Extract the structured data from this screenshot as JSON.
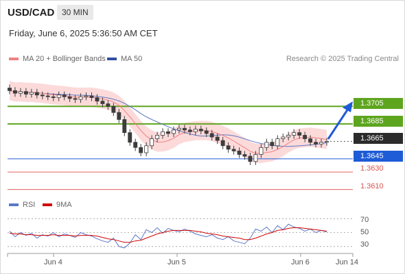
{
  "header": {
    "symbol": "USD/CAD",
    "timeframe": "30 MIN",
    "date_line": "Friday, June 6, 2025 5:36:50 AM CET"
  },
  "legend": {
    "ma20_label": "MA 20 + Bollinger Bands",
    "ma50_label": "MA 50",
    "copyright": "Research © 2025 Trading Central"
  },
  "colors": {
    "ma20": "#f08080",
    "bollinger_fill": "#fbd3d3",
    "ma50": "#5b78c7",
    "resistance": "#5ea51f",
    "support": "#1e5bd6",
    "secondary": "#e06060",
    "current": "#2b2b2b",
    "candle": "#3d3d3d",
    "rsi": "#5b78c7",
    "rsi_ma": "#d00000",
    "arrow": "#1e5bd6"
  },
  "levels": {
    "r2": "1.3705",
    "r1": "1.3685",
    "current": "1.3665",
    "s1": "1.3645",
    "s2": "1.3630",
    "s3": "1.3610"
  },
  "rsi": {
    "rsi_label": "RSI",
    "ma_label": "9MA",
    "ticks": [
      "70",
      "50",
      "30"
    ]
  },
  "xaxis": {
    "ticks": [
      "Jun 4",
      "Jun 5",
      "Jun 6",
      "Jun 14"
    ]
  },
  "chart_data": {
    "type": "candlestick",
    "title": "USD/CAD",
    "timeframe": "30 MIN",
    "x_ticks": [
      "Jun 4",
      "Jun 5",
      "Jun 6",
      "Jun 14"
    ],
    "price_range": [
      1.3605,
      1.3735
    ],
    "key_levels": [
      {
        "name": "resistance",
        "value": 1.3705
      },
      {
        "name": "resistance",
        "value": 1.3685
      },
      {
        "name": "current",
        "value": 1.3665
      },
      {
        "name": "support",
        "value": 1.3645
      },
      {
        "name": "support",
        "value": 1.363
      },
      {
        "name": "support",
        "value": 1.361
      }
    ],
    "close_path": [
      1.3723,
      1.372,
      1.3722,
      1.3719,
      1.3721,
      1.3718,
      1.3717,
      1.3716,
      1.3715,
      1.3718,
      1.3716,
      1.3714,
      1.3713,
      1.3716,
      1.3717,
      1.3715,
      1.3711,
      1.3708,
      1.3705,
      1.3698,
      1.369,
      1.3675,
      1.3664,
      1.3658,
      1.3652,
      1.366,
      1.3668,
      1.3672,
      1.3676,
      1.3674,
      1.3678,
      1.368,
      1.3678,
      1.3676,
      1.3679,
      1.3677,
      1.3674,
      1.367,
      1.3666,
      1.366,
      1.3656,
      1.3654,
      1.365,
      1.3648,
      1.3642,
      1.365,
      1.3658,
      1.3664,
      1.366,
      1.3668,
      1.367,
      1.3672,
      1.3675,
      1.3672,
      1.3668,
      1.3664,
      1.3662,
      1.3664,
      1.3665
    ],
    "rsi_range": [
      20,
      80
    ],
    "rsi_ticks": [
      70,
      50,
      30
    ],
    "rsi_path": [
      52,
      44,
      50,
      46,
      49,
      42,
      47,
      45,
      50,
      44,
      48,
      46,
      43,
      50,
      47,
      45,
      41,
      38,
      36,
      42,
      30,
      28,
      35,
      47,
      40,
      54,
      50,
      57,
      49,
      56,
      53,
      51,
      55,
      52,
      48,
      46,
      44,
      47,
      42,
      40,
      44,
      38,
      36,
      34,
      42,
      55,
      52,
      58,
      50,
      60,
      54,
      62,
      58,
      56,
      52,
      55,
      50,
      53,
      51
    ],
    "rsi_ma_path": [
      49,
      48,
      48,
      47,
      47,
      46,
      46,
      46,
      47,
      46,
      46,
      46,
      45,
      46,
      46,
      46,
      45,
      43,
      41,
      40,
      38,
      36,
      36,
      38,
      39,
      42,
      45,
      48,
      50,
      52,
      53,
      53,
      53,
      53,
      52,
      51,
      49,
      48,
      47,
      45,
      44,
      43,
      42,
      40,
      40,
      42,
      45,
      48,
      50,
      53,
      54,
      56,
      57,
      57,
      56,
      55,
      54,
      53,
      52
    ]
  }
}
